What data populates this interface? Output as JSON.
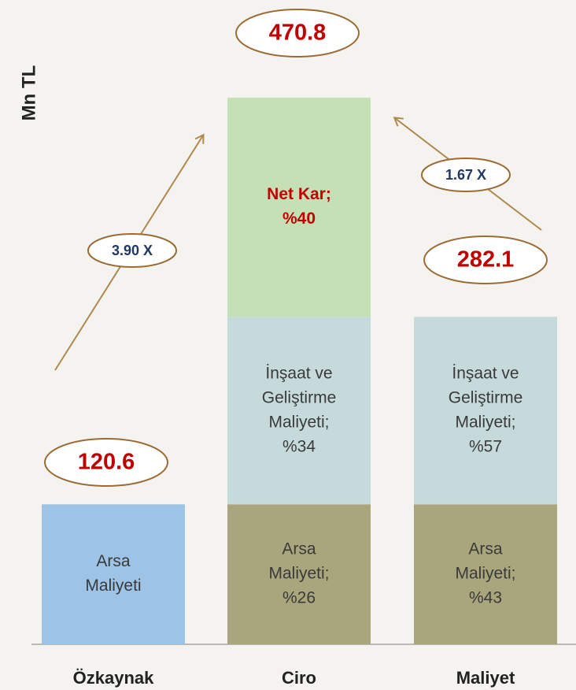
{
  "chart_data": {
    "type": "stacked_bar",
    "y_label": "Mn TL",
    "categories": [
      "Özkaynak",
      "Ciro",
      "Maliyet"
    ],
    "series": [
      {
        "name": "Arsa Maliyeti",
        "colors": [
          "#9dc3e6",
          "#a9a57c",
          "#a9a57c"
        ],
        "values": [
          120.6,
          120.6,
          120.6
        ],
        "segment_labels": [
          [
            "Arsa",
            "Maliyeti"
          ],
          [
            "Arsa",
            "Maliyeti;",
            "%26"
          ],
          [
            "Arsa",
            "Maliyeti;",
            "%43"
          ]
        ]
      },
      {
        "name": "İnşaat ve Geliştirme Maliyeti",
        "colors": [
          null,
          "#c6dadb",
          "#c6dadb"
        ],
        "values": [
          null,
          161.5,
          161.5
        ],
        "segment_labels": [
          null,
          [
            "İnşaat ve",
            "Geliştirme",
            "Maliyeti;",
            "%34"
          ],
          [
            "İnşaat ve",
            "Geliştirme",
            "Maliyeti;",
            "%57"
          ]
        ]
      },
      {
        "name": "Net Kar",
        "colors": [
          null,
          "#c5e0b4",
          null
        ],
        "values": [
          null,
          188.7,
          null
        ],
        "segment_labels": [
          null,
          [
            "Net Kar;",
            "%40"
          ],
          null
        ],
        "label_color": "#c00000"
      }
    ],
    "totals": [
      120.6,
      470.8,
      282.1
    ],
    "annotations": [
      {
        "text": "3.90 X"
      },
      {
        "text": "1.67 X"
      }
    ],
    "ylim": [
      0,
      555
    ]
  }
}
